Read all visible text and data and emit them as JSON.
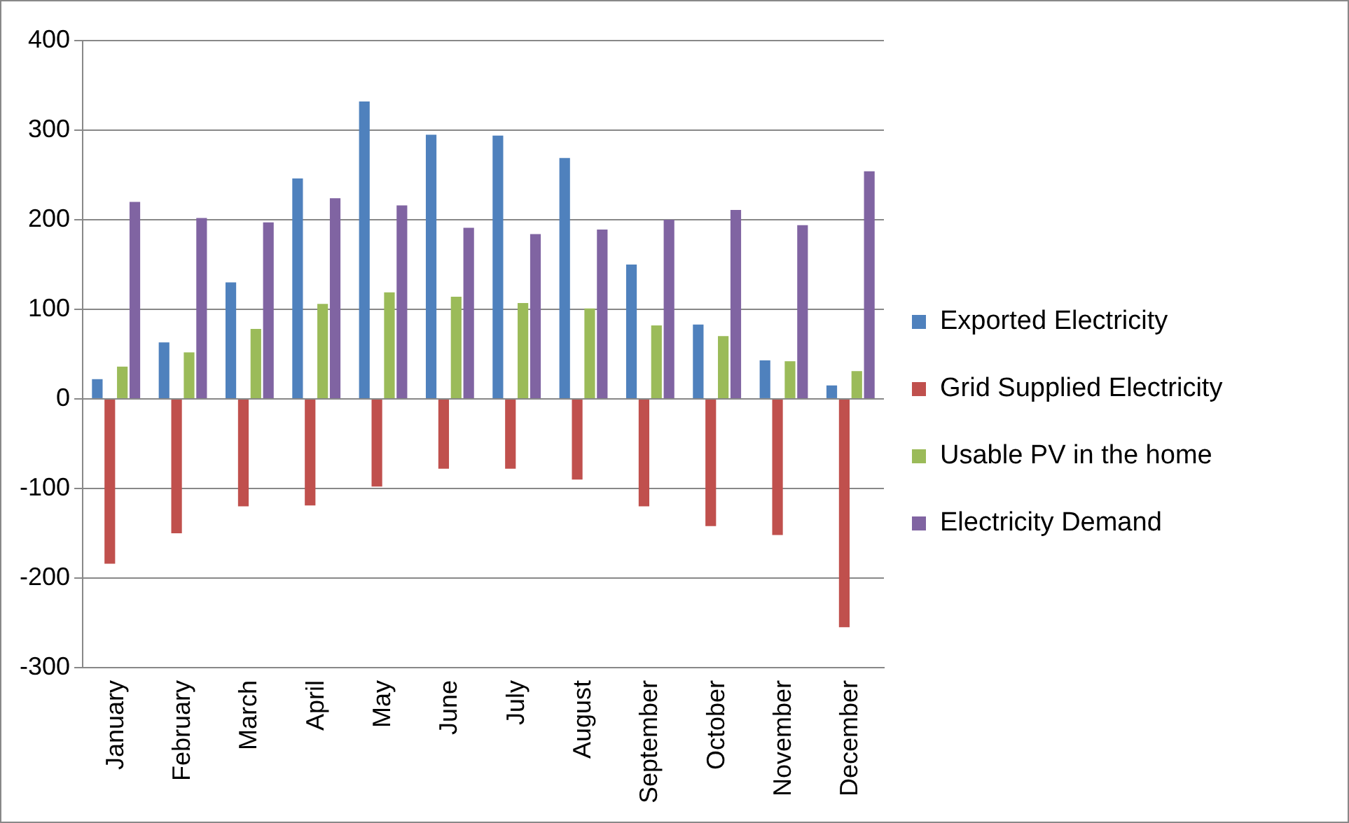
{
  "chart_data": {
    "type": "bar",
    "categories": [
      "January",
      "February",
      "March",
      "April",
      "May",
      "June",
      "July",
      "August",
      "September",
      "October",
      "November",
      "December"
    ],
    "series": [
      {
        "name": "Exported Electricity",
        "color": "#4f81bd",
        "values": [
          22,
          63,
          130,
          246,
          332,
          295,
          294,
          269,
          150,
          83,
          43,
          15
        ]
      },
      {
        "name": "Grid Supplied Electricity",
        "color": "#c0504d",
        "values": [
          -184,
          -150,
          -120,
          -119,
          -98,
          -78,
          -78,
          -90,
          -120,
          -142,
          -152,
          -255
        ]
      },
      {
        "name": "Usable PV in the home",
        "color": "#9bbb59",
        "values": [
          36,
          52,
          78,
          106,
          119,
          114,
          107,
          101,
          82,
          70,
          42,
          31
        ]
      },
      {
        "name": "Electricity Demand",
        "color": "#8064a2",
        "values": [
          220,
          202,
          197,
          224,
          216,
          191,
          184,
          189,
          200,
          211,
          194,
          254
        ]
      }
    ],
    "ylim": [
      -300,
      400
    ],
    "yticks": [
      -300,
      -200,
      -100,
      0,
      100,
      200,
      300,
      400
    ],
    "grid": "y",
    "legend": "right"
  }
}
